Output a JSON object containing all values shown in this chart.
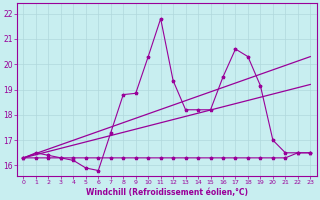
{
  "xlabel": "Windchill (Refroidissement éolien,°C)",
  "bg_color": "#c8eef0",
  "grid_color": "#b0d8dc",
  "line_color": "#990099",
  "xlim": [
    -0.5,
    23.5
  ],
  "ylim": [
    15.6,
    22.4
  ],
  "xticks": [
    0,
    1,
    2,
    3,
    4,
    5,
    6,
    7,
    8,
    9,
    10,
    11,
    12,
    13,
    14,
    15,
    16,
    17,
    18,
    19,
    20,
    21,
    22,
    23
  ],
  "yticks": [
    16,
    17,
    18,
    19,
    20,
    21,
    22
  ],
  "flat_x": [
    0,
    1,
    2,
    3,
    4,
    5,
    6,
    7,
    8,
    9,
    10,
    11,
    12,
    13,
    14,
    15,
    16,
    17,
    18,
    19,
    20,
    21,
    22,
    23
  ],
  "flat_y": [
    16.3,
    16.3,
    16.3,
    16.3,
    16.3,
    16.3,
    16.3,
    16.3,
    16.3,
    16.3,
    16.3,
    16.3,
    16.3,
    16.3,
    16.3,
    16.3,
    16.3,
    16.3,
    16.3,
    16.3,
    16.3,
    16.3,
    16.5,
    16.5
  ],
  "jagged_x": [
    0,
    1,
    2,
    3,
    4,
    5,
    6,
    7,
    8,
    9,
    10,
    11,
    12,
    13,
    14,
    15,
    16,
    17,
    18,
    19,
    20,
    21,
    22,
    23
  ],
  "jagged_y": [
    16.3,
    16.5,
    16.4,
    16.3,
    16.2,
    15.9,
    15.8,
    17.3,
    18.8,
    18.85,
    20.3,
    21.8,
    19.35,
    18.2,
    18.2,
    18.2,
    19.5,
    20.6,
    20.3,
    19.15,
    17.0,
    16.5,
    16.5,
    16.5
  ],
  "trend1_x": [
    0,
    23
  ],
  "trend1_y": [
    16.3,
    19.2
  ],
  "trend2_x": [
    0,
    23
  ],
  "trend2_y": [
    16.3,
    20.3
  ]
}
